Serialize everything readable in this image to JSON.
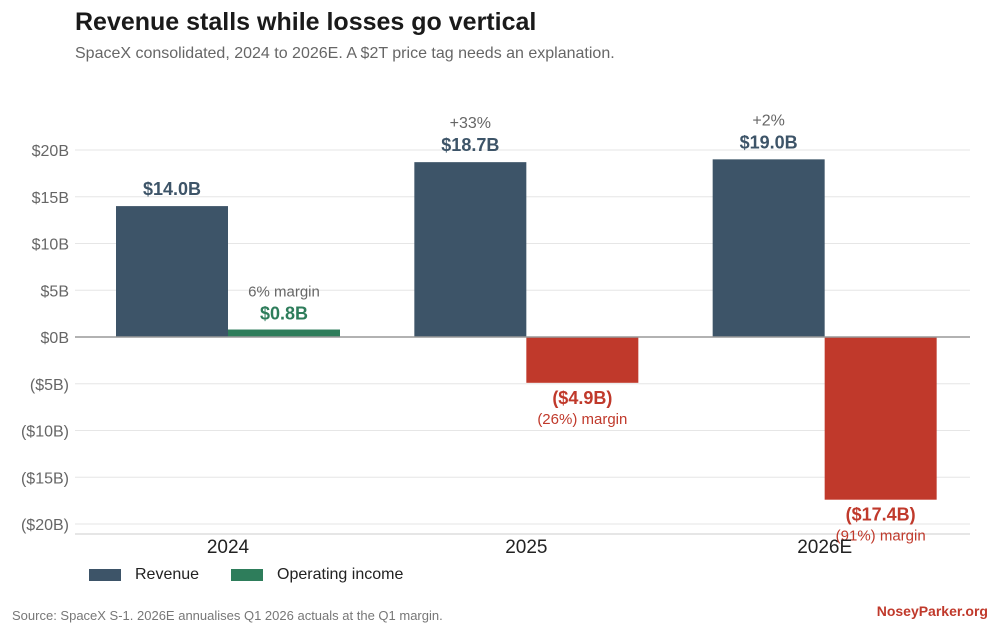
{
  "title": "Revenue stalls while losses go vertical",
  "subtitle": "SpaceX consolidated, 2024 to 2026E. A $2T price tag needs an explanation.",
  "source": "Source: SpaceX S-1. 2026E annualises Q1 2026 actuals at the Q1 margin.",
  "brand": "NoseyParker.org",
  "colors": {
    "revenue": "#3d5468",
    "income_pos": "#2e7d5b",
    "income_neg": "#c0392b",
    "grid": "#e6e6e6",
    "axis": "#999999"
  },
  "chart_data": {
    "type": "bar",
    "categories": [
      "2024",
      "2025",
      "2026E"
    ],
    "ylim": [
      -20,
      20
    ],
    "yticks": [
      20,
      15,
      10,
      5,
      0,
      -5,
      -10,
      -15,
      -20
    ],
    "ytick_labels": [
      "$20B",
      "$15B",
      "$10B",
      "$5B",
      "$0B",
      "($5B)",
      "($10B)",
      "($15B)",
      "($20B)"
    ],
    "series": [
      {
        "name": "Revenue",
        "values": [
          14.0,
          18.7,
          19.0
        ],
        "labels": [
          "$14.0B",
          "$18.7B",
          "$19.0B"
        ],
        "annotations": [
          "",
          "+33%",
          "+2%"
        ]
      },
      {
        "name": "Operating income",
        "values": [
          0.8,
          -4.9,
          -17.4
        ],
        "labels": [
          "$0.8B",
          "($4.9B)",
          "($17.4B)"
        ],
        "annotations": [
          "6% margin",
          "(26%) margin",
          "(91%) margin"
        ]
      }
    ],
    "legend_position": "bottom-left"
  }
}
